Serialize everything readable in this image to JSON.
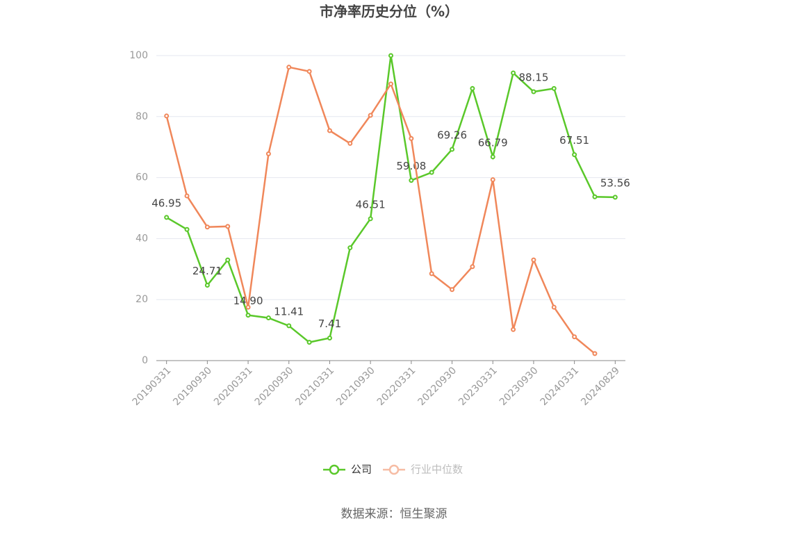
{
  "chart_data": {
    "type": "line",
    "title": "市净率历史分位（%）",
    "categories": [
      "20190331",
      null,
      "20190930",
      null,
      "20200331",
      null,
      "20200930",
      null,
      "20210331",
      null,
      "20210930",
      null,
      "20220331",
      null,
      "20220930",
      null,
      "20230331",
      null,
      "20230930",
      null,
      "20240331",
      null,
      "20240829"
    ],
    "series": [
      {
        "name": "公司",
        "color": "#5ac82a",
        "values": [
          46.95,
          43,
          24.71,
          33,
          14.9,
          14,
          11.41,
          6,
          7.41,
          37,
          46.51,
          100,
          59.08,
          61.7,
          69.26,
          89.2,
          66.79,
          94.3,
          88.15,
          89.2,
          67.51,
          53.7,
          53.56
        ],
        "value_labels": [
          "46.95",
          null,
          "24.71",
          null,
          "14.90",
          null,
          "11.41",
          null,
          "7.41",
          null,
          "46.51",
          null,
          "59.08",
          null,
          "69.26",
          null,
          "66.79",
          null,
          "88.15",
          null,
          "67.51",
          null,
          "53.56"
        ]
      },
      {
        "name": "行业中位数",
        "color": "#f0875a",
        "values": [
          80.2,
          54,
          43.8,
          44,
          17.5,
          67.8,
          96.2,
          94.8,
          75.4,
          71.2,
          80.4,
          90.7,
          72.8,
          28.5,
          23.3,
          30.8,
          59.3,
          10.2,
          33,
          17.5,
          7.8,
          2.3,
          null
        ]
      }
    ],
    "ylim": [
      0,
      100
    ],
    "yticks": [
      0,
      20,
      40,
      60,
      80,
      100
    ],
    "grid": true,
    "source": "数据来源：恒生聚源"
  }
}
